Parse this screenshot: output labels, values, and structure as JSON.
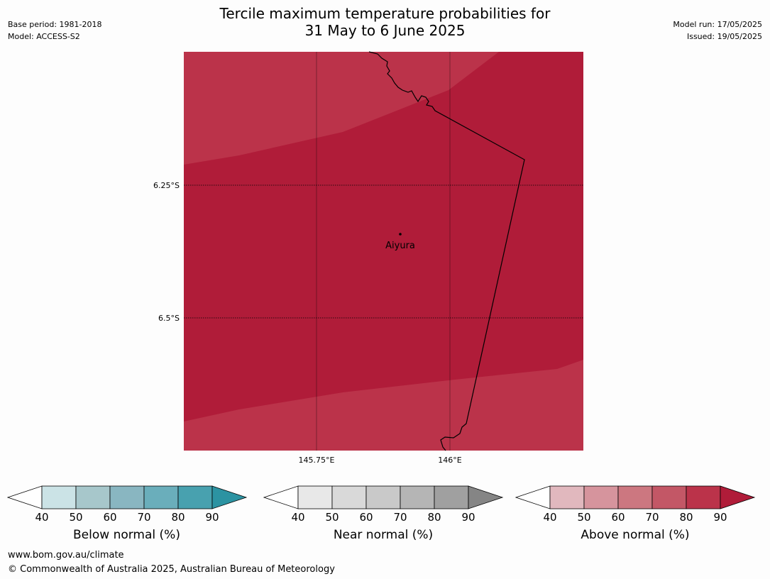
{
  "header": {
    "title_line1": "Tercile maximum temperature probabilities for",
    "title_line2": "31 May to 6 June 2025",
    "base_period": "Base period: 1981-2018",
    "model": "Model: ACCESS-S2",
    "model_run": "Model run: 17/05/2025",
    "issued": "Issued: 19/05/2025"
  },
  "map": {
    "lat_labels": [
      "6.25°S",
      "6.5°S"
    ],
    "lon_labels": [
      "145.75°E",
      "146°E"
    ],
    "place": {
      "name": "Aiyura"
    },
    "colors": {
      "above_80_90": "#b01c39",
      "above_70_80": "#bb334a",
      "grid": "#000000"
    }
  },
  "legends": [
    {
      "name": "Below normal (%)",
      "ticks": [
        "40",
        "50",
        "60",
        "70",
        "80",
        "90"
      ],
      "colors": [
        "#ffffff",
        "#cbe3e6",
        "#a7c7cb",
        "#89b6c1",
        "#6aaebb",
        "#48a1af",
        "#2c93a2"
      ]
    },
    {
      "name": "Near normal (%)",
      "ticks": [
        "40",
        "50",
        "60",
        "70",
        "80",
        "90"
      ],
      "colors": [
        "#ffffff",
        "#e8e8e8",
        "#d9d9d9",
        "#c9c9c9",
        "#b5b5b5",
        "#a0a0a0",
        "#858585"
      ]
    },
    {
      "name": "Above normal (%)",
      "ticks": [
        "40",
        "50",
        "60",
        "70",
        "80",
        "90"
      ],
      "colors": [
        "#ffffff",
        "#e1b8be",
        "#d6949d",
        "#cc7780",
        "#c35766",
        "#bb334a",
        "#b01c39"
      ]
    }
  ],
  "footer": {
    "url": "www.bom.gov.au/climate",
    "copyright": "© Commonwealth of Australia 2025, Australian Bureau of Meteorology"
  }
}
